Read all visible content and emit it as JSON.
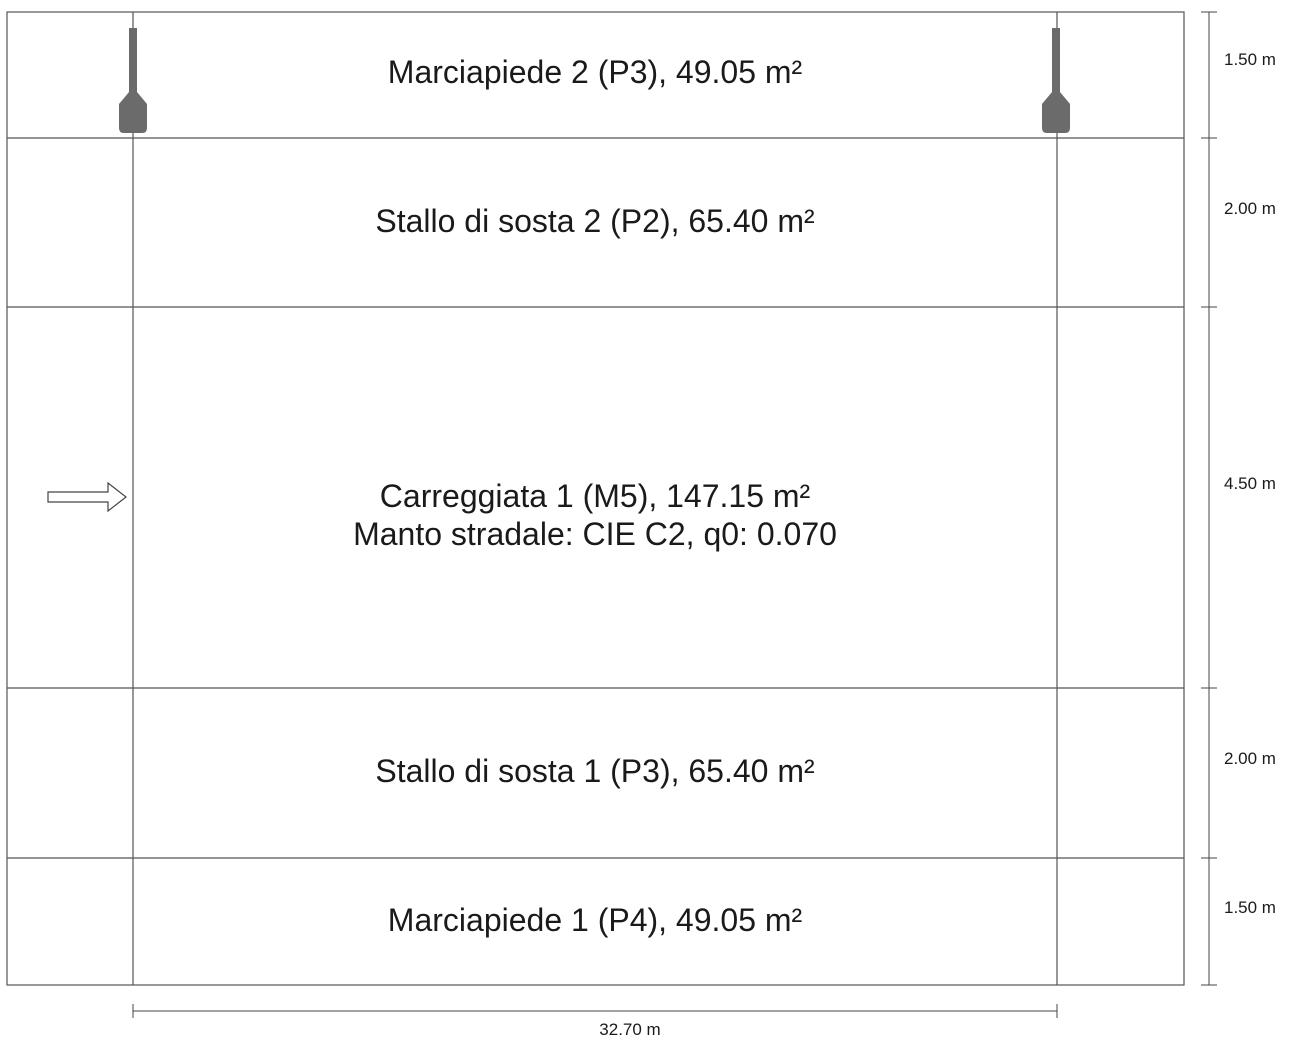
{
  "zones": [
    {
      "id": "marciapiede-2",
      "lines": [
        "Marciapiede 2 (P3), 49.05 m²"
      ],
      "width_label": "1.50 m"
    },
    {
      "id": "stallo-2",
      "lines": [
        "Stallo di sosta 2 (P2), 65.40 m²"
      ],
      "width_label": "2.00 m"
    },
    {
      "id": "carreggiata-1",
      "lines": [
        "Carreggiata 1 (M5), 147.15 m²",
        "Manto stradale: CIE C2, q0: 0.070"
      ],
      "width_label": "4.50 m"
    },
    {
      "id": "stallo-1",
      "lines": [
        "Stallo di sosta 1 (P3), 65.40 m²"
      ],
      "width_label": "2.00 m"
    },
    {
      "id": "marciapiede-1",
      "lines": [
        "Marciapiede 1 (P4), 49.05 m²"
      ],
      "width_label": "1.50 m"
    }
  ],
  "length_label": "32.70 m",
  "icons": {
    "direction": "traffic-direction-arrow-icon",
    "luminaire": "street-light-pole-icon"
  },
  "colors": {
    "lines": "#555555",
    "pole": "#6b6b6b",
    "text": "#1a1a1a"
  }
}
